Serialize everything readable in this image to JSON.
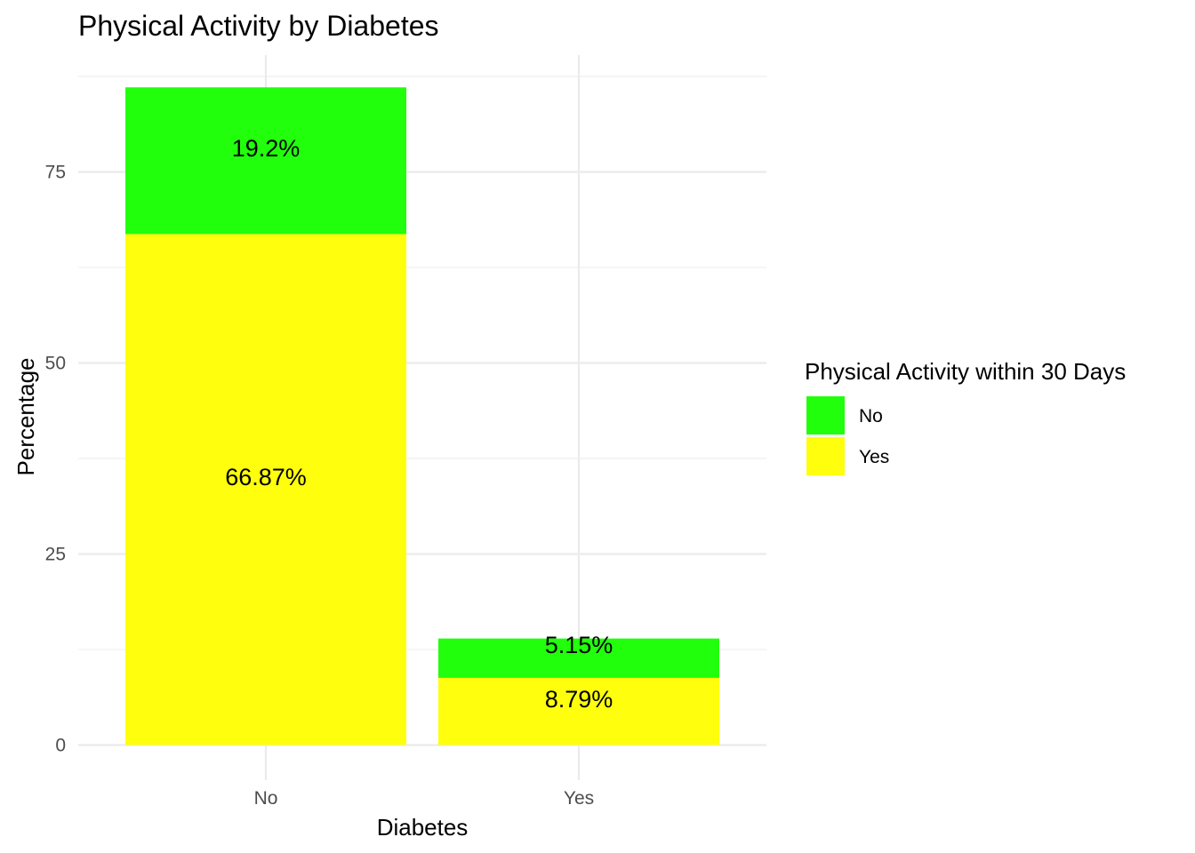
{
  "chart_data": {
    "type": "bar",
    "stacked": true,
    "title": "Physical Activity by Diabetes",
    "xlabel": "Diabetes",
    "ylabel": "Percentage",
    "categories": [
      "No",
      "Yes"
    ],
    "ylim": [
      0,
      88
    ],
    "yticks": [
      0,
      25,
      50,
      75
    ],
    "grid": true,
    "series": [
      {
        "name": "Yes",
        "color": "#FFFF0D",
        "values": [
          66.87,
          8.79
        ],
        "labels": [
          "66.87%",
          "8.79%"
        ]
      },
      {
        "name": "No",
        "color": "#21FF0D",
        "values": [
          19.2,
          5.15
        ],
        "labels": [
          "19.2%",
          "5.15%"
        ]
      }
    ],
    "legend": {
      "title": "Physical Activity within 30 Days",
      "position": "right",
      "items": [
        {
          "label": "No",
          "color": "#21FF0D"
        },
        {
          "label": "Yes",
          "color": "#FFFF0D"
        }
      ]
    }
  }
}
